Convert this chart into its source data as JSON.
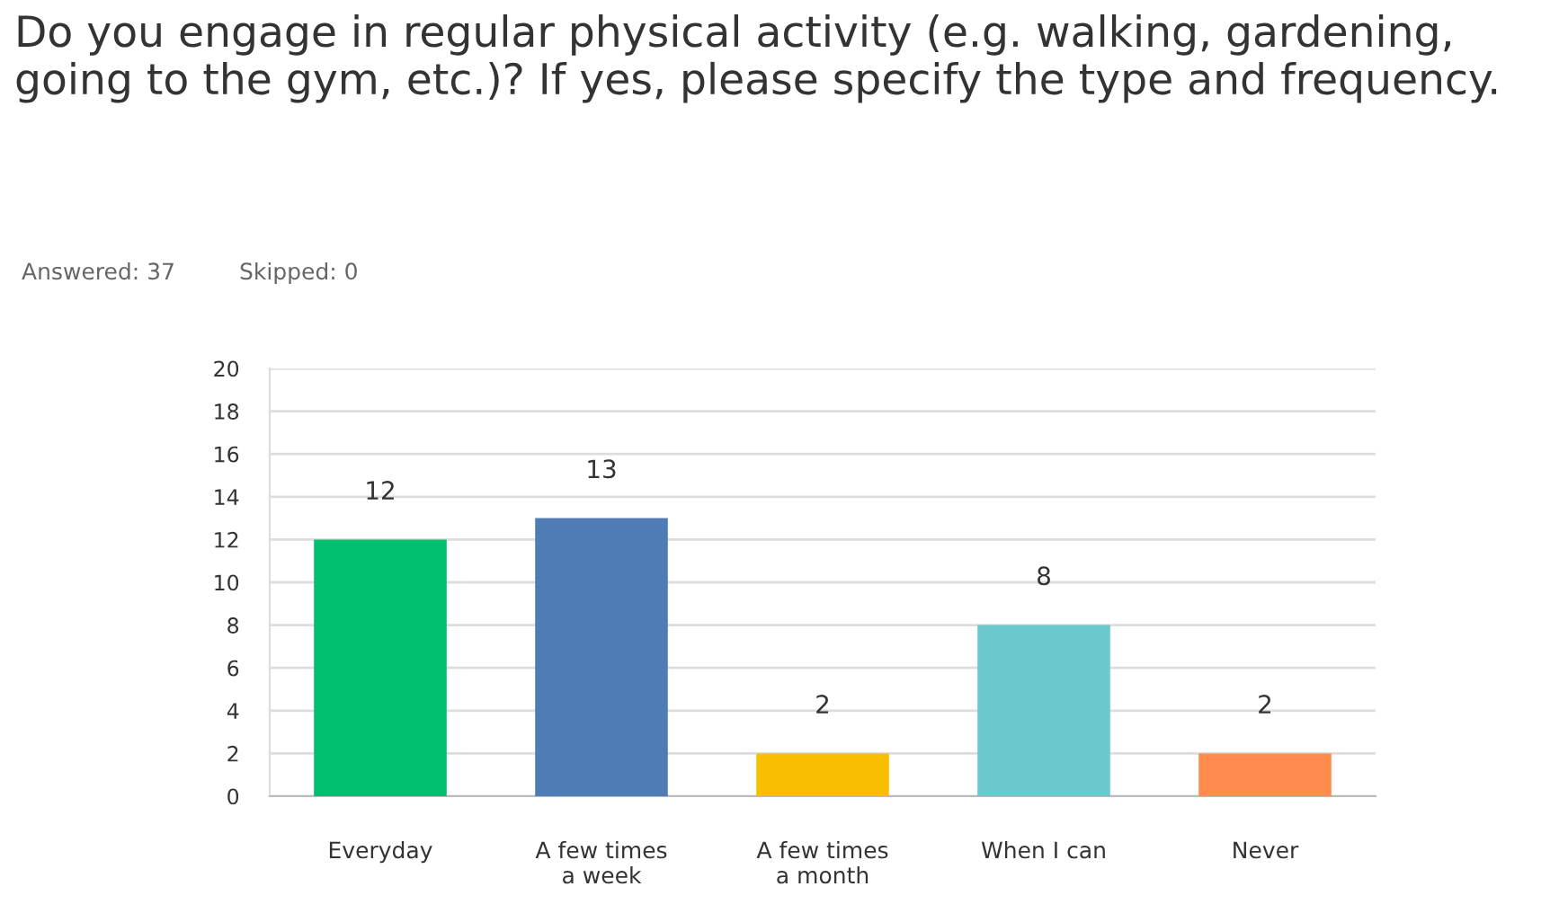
{
  "chart_data": {
    "type": "bar",
    "title": "Do you engage in regular physical activity (e.g. walking, gardening, going to the gym, etc.)? If yes, please specify the type and frequency.",
    "annotations": [
      "Answered: 37",
      "Skipped: 0"
    ],
    "categories": [
      "Everyday",
      "A few times\na week",
      "A few times\na month",
      "When I can",
      "Never"
    ],
    "values": [
      12,
      13,
      2,
      8,
      2
    ],
    "colors": [
      "#00bf6f",
      "#507cb6",
      "#f9be00",
      "#6bc8cd",
      "#ff8b4f"
    ],
    "ylim": [
      0,
      20
    ],
    "yticks": [
      0,
      2,
      4,
      6,
      8,
      10,
      12,
      14,
      16,
      18,
      20
    ],
    "grid": "y",
    "data_labels": true
  }
}
